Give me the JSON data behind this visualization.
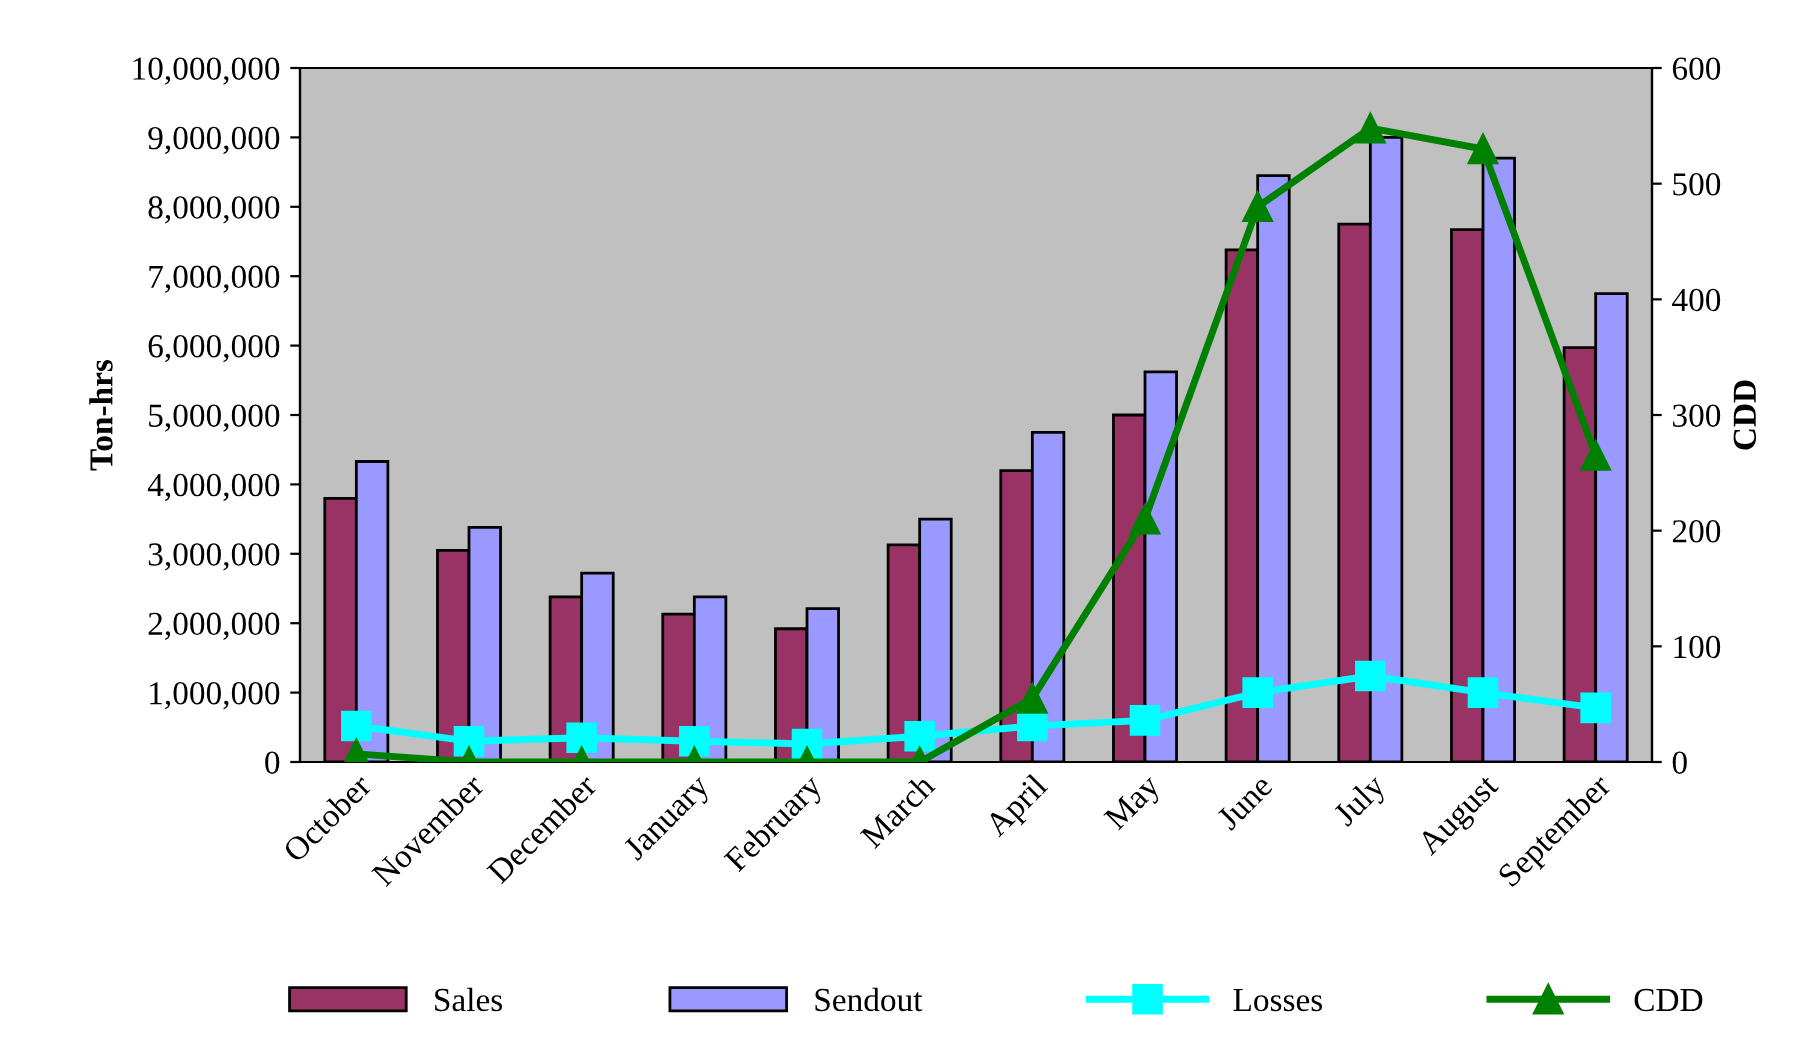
{
  "chart_data": {
    "type": "bar",
    "ylabel": "Ton-hrs",
    "y2label": "CDD",
    "categories": [
      "October",
      "November",
      "December",
      "January",
      "February",
      "March",
      "April",
      "May",
      "June",
      "July",
      "August",
      "September"
    ],
    "series": [
      {
        "name": "Sales",
        "color": "#993366",
        "values": [
          3800000,
          3050000,
          2380000,
          2130000,
          1920000,
          3130000,
          4200000,
          5000000,
          7380000,
          7750000,
          7670000,
          5970000
        ]
      },
      {
        "name": "Sendout",
        "color": "#9999ff",
        "values": [
          4330000,
          3380000,
          2720000,
          2380000,
          2210000,
          3500000,
          4750000,
          5620000,
          8450000,
          9000000,
          8700000,
          6750000
        ]
      },
      {
        "name": "Losses",
        "type": "line",
        "color": "#00ffff",
        "marker": "square",
        "values": [
          520000,
          300000,
          350000,
          300000,
          260000,
          370000,
          520000,
          600000,
          1000000,
          1240000,
          1000000,
          780000
        ]
      },
      {
        "name": "CDD",
        "type": "line",
        "axis": "y2",
        "color": "#008000",
        "marker": "triangle",
        "values": [
          7,
          0,
          0,
          0,
          0,
          0,
          55,
          210,
          480,
          548,
          530,
          265
        ]
      }
    ],
    "ylim": [
      0,
      10000000
    ],
    "yticks": [
      {
        "value": 0,
        "label": "0"
      },
      {
        "value": 1000000,
        "label": "1,000,000"
      },
      {
        "value": 2000000,
        "label": "2,000,000"
      },
      {
        "value": 3000000,
        "label": "3,000,000"
      },
      {
        "value": 4000000,
        "label": "4,000,000"
      },
      {
        "value": 5000000,
        "label": "5,000,000"
      },
      {
        "value": 6000000,
        "label": "6,000,000"
      },
      {
        "value": 7000000,
        "label": "7,000,000"
      },
      {
        "value": 8000000,
        "label": "8,000,000"
      },
      {
        "value": 9000000,
        "label": "9,000,000"
      },
      {
        "value": 10000000,
        "label": "10,000,000"
      }
    ],
    "y2lim": [
      0,
      600
    ],
    "y2ticks": [
      0,
      100,
      200,
      300,
      400,
      500,
      600
    ],
    "grid": false,
    "legend": "bottom"
  }
}
